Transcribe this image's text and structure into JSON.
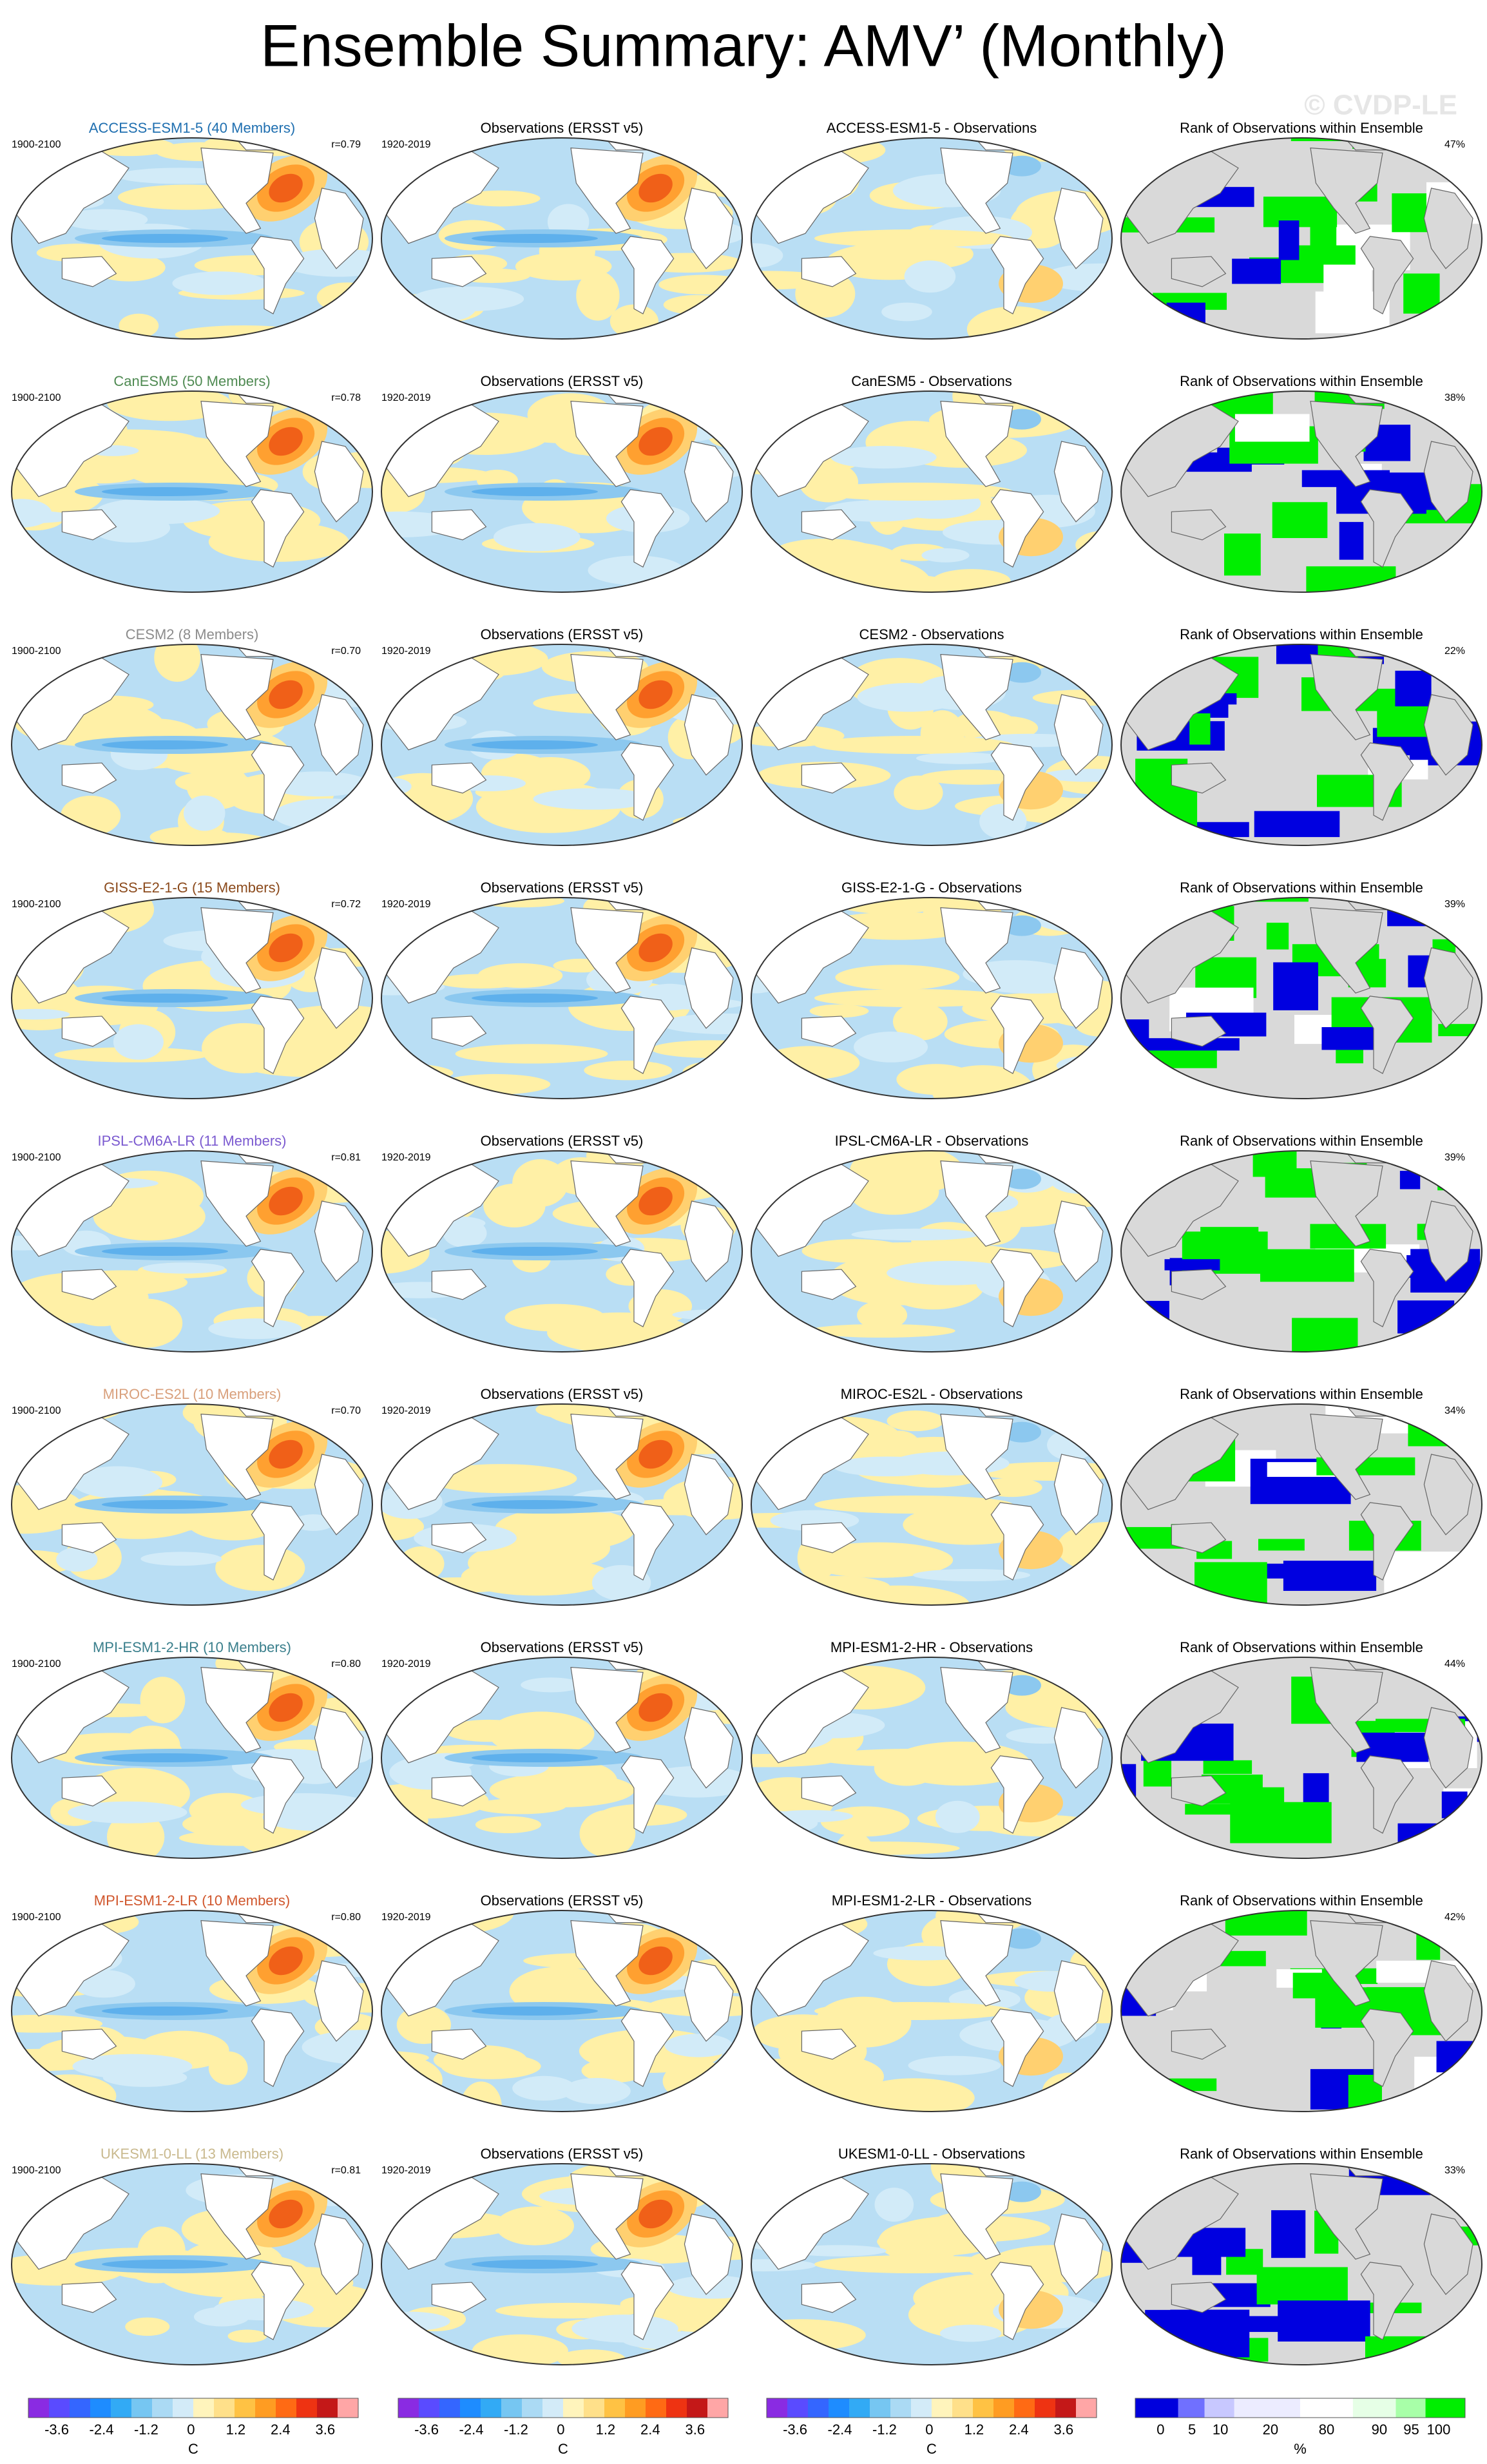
{
  "header": {
    "title": "Ensemble Summary: AMV’ (Monthly)",
    "watermark": "© CVDP-LE"
  },
  "rows": [
    {
      "model": "ACCESS-ESM1-5 (40 Members)",
      "color": "#1f6fb0",
      "period": "1900-2100",
      "r": "r=0.79",
      "obs_title": "Observations (ERSST v5)",
      "obs_period": "1920-2019",
      "diff_title": "ACCESS-ESM1-5 - Observations",
      "rank_title": "Rank of Observations within Ensemble",
      "rank": "47%"
    },
    {
      "model": "CanESM5 (50 Members)",
      "color": "#4f8a52",
      "period": "1900-2100",
      "r": "r=0.78",
      "obs_title": "Observations (ERSST v5)",
      "obs_period": "1920-2019",
      "diff_title": "CanESM5 - Observations",
      "rank_title": "Rank of Observations within Ensemble",
      "rank": "38%"
    },
    {
      "model": "CESM2 (8 Members)",
      "color": "#8c8c8c",
      "period": "1900-2100",
      "r": "r=0.70",
      "obs_title": "Observations (ERSST v5)",
      "obs_period": "1920-2019",
      "diff_title": "CESM2 - Observations",
      "rank_title": "Rank of Observations within Ensemble",
      "rank": "22%"
    },
    {
      "model": "GISS-E2-1-G (15 Members)",
      "color": "#8b4a1c",
      "period": "1900-2100",
      "r": "r=0.72",
      "obs_title": "Observations (ERSST v5)",
      "obs_period": "1920-2019",
      "diff_title": "GISS-E2-1-G - Observations",
      "rank_title": "Rank of Observations within Ensemble",
      "rank": "39%"
    },
    {
      "model": "IPSL-CM6A-LR (11 Members)",
      "color": "#7b5ad0",
      "period": "1900-2100",
      "r": "r=0.81",
      "obs_title": "Observations (ERSST v5)",
      "obs_period": "1920-2019",
      "diff_title": "IPSL-CM6A-LR - Observations",
      "rank_title": "Rank of Observations within Ensemble",
      "rank": "39%"
    },
    {
      "model": "MIROC-ES2L (10 Members)",
      "color": "#d9a07c",
      "period": "1900-2100",
      "r": "r=0.70",
      "obs_title": "Observations (ERSST v5)",
      "obs_period": "1920-2019",
      "diff_title": "MIROC-ES2L - Observations",
      "rank_title": "Rank of Observations within Ensemble",
      "rank": "34%"
    },
    {
      "model": "MPI-ESM1-2-HR (10 Members)",
      "color": "#3a7f8c",
      "period": "1900-2100",
      "r": "r=0.80",
      "obs_title": "Observations (ERSST v5)",
      "obs_period": "1920-2019",
      "diff_title": "MPI-ESM1-2-HR - Observations",
      "rank_title": "Rank of Observations within Ensemble",
      "rank": "44%"
    },
    {
      "model": "MPI-ESM1-2-LR (10 Members)",
      "color": "#d0562c",
      "period": "1900-2100",
      "r": "r=0.80",
      "obs_title": "Observations (ERSST v5)",
      "obs_period": "1920-2019",
      "diff_title": "MPI-ESM1-2-LR - Observations",
      "rank_title": "Rank of Observations within Ensemble",
      "rank": "42%"
    },
    {
      "model": "UKESM1-0-LL (13 Members)",
      "color": "#c9b98e",
      "period": "1900-2100",
      "r": "r=0.81",
      "obs_title": "Observations (ERSST v5)",
      "obs_period": "1920-2019",
      "diff_title": "UKESM1-0-LL - Observations",
      "rank_title": "Rank of Observations within Ensemble",
      "rank": "33%"
    }
  ],
  "colorbars": [
    {
      "labels": [
        "-3.6",
        "-2.4",
        "-1.2",
        "0",
        "1.2",
        "2.4",
        "3.6"
      ],
      "unit": "C"
    },
    {
      "labels": [
        "-3.6",
        "-2.4",
        "-1.2",
        "0",
        "1.2",
        "2.4",
        "3.6"
      ],
      "unit": "C"
    },
    {
      "labels": [
        "-3.6",
        "-2.4",
        "-1.2",
        "0",
        "1.2",
        "2.4",
        "3.6"
      ],
      "unit": "C"
    },
    {
      "labels": [
        "0",
        "5",
        "10",
        "20",
        "80",
        "90",
        "95",
        "100"
      ],
      "unit": "%"
    }
  ]
}
